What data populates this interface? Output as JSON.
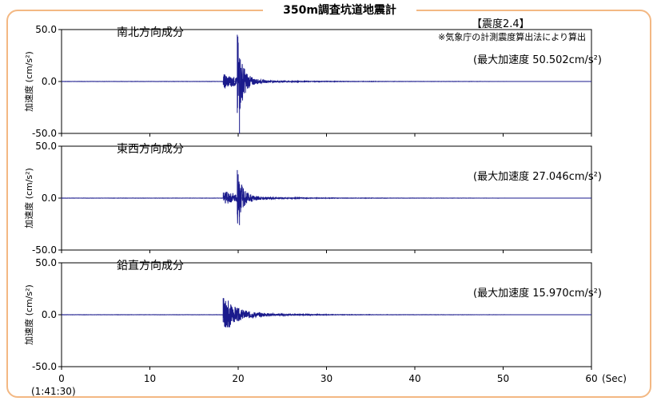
{
  "title": "350m調査坑道地震計",
  "intensity_label": "【震度2.4】",
  "intensity_note": "※気象庁の計測震度算出法により算出",
  "timestamp": "(1:41:30)",
  "colors": {
    "frame": "#f3b883",
    "trace": "#1a1a8c"
  },
  "chart_data": {
    "type": "line",
    "x_axis": {
      "range": [
        0,
        60
      ],
      "ticks": [
        0,
        10,
        20,
        30,
        40,
        50,
        60
      ],
      "tick_labels": [
        "0",
        "10",
        "20",
        "30",
        "40",
        "50",
        "60"
      ],
      "unit": "(Sec)"
    },
    "y_axis": {
      "range": [
        -50,
        50
      ],
      "tick_labels": [
        "50.0",
        "0.0",
        "-50.0"
      ],
      "label": "加速度 (cm/s²)"
    },
    "panels": [
      {
        "name": "南北方向成分",
        "peak_text": "(最大加速度 50.502cm/s²)",
        "peak": 50.502,
        "onset_s": 18.3,
        "main_s": 19.9,
        "pos_peak": 45,
        "neg_peak": -50.5
      },
      {
        "name": "東西方向成分",
        "peak_text": "(最大加速度 27.046cm/s²)",
        "peak": 27.046,
        "onset_s": 18.3,
        "main_s": 19.9,
        "pos_peak": 27,
        "neg_peak": -26
      },
      {
        "name": "鉛直方向成分",
        "peak_text": "(最大加速度 15.970cm/s²)",
        "peak": 15.97,
        "onset_s": 18.3,
        "main_s": 18.3,
        "pos_peak": 16,
        "neg_peak": -12
      }
    ]
  }
}
